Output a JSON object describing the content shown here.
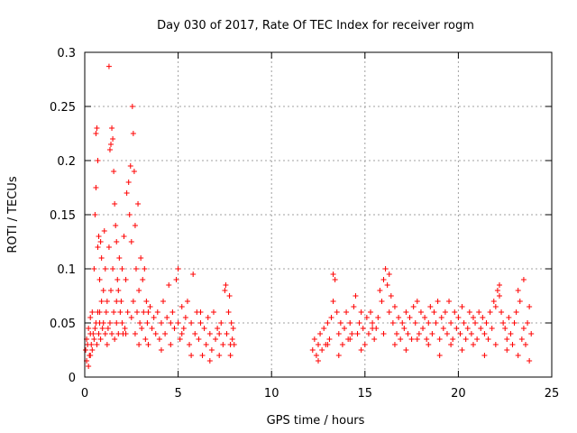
{
  "chart_data": {
    "type": "scatter",
    "title": "Day 030 of 2017, Rate Of TEC Index for receiver rogm",
    "xlabel": "GPS time / hours",
    "ylabel": "ROTI / TECUs",
    "xlim": [
      0,
      25
    ],
    "ylim": [
      0,
      0.3
    ],
    "xticks": [
      0,
      5,
      10,
      15,
      20,
      25
    ],
    "xtick_labels": [
      "0",
      "5",
      "10",
      "15",
      "20",
      "25"
    ],
    "yticks": [
      0,
      0.05,
      0.1,
      0.15,
      0.2,
      0.25,
      0.3
    ],
    "ytick_labels": [
      "0",
      "0.05",
      "0.1",
      "0.15",
      "0.2",
      "0.25",
      "0.3"
    ],
    "grid": true,
    "marker": "+",
    "color": "#ff0000",
    "series": [
      {
        "points": [
          [
            0.05,
            0.025
          ],
          [
            0.1,
            0.035
          ],
          [
            0.1,
            0.015
          ],
          [
            0.15,
            0.03
          ],
          [
            0.2,
            0.045
          ],
          [
            0.2,
            0.01
          ],
          [
            0.25,
            0.02
          ],
          [
            0.3,
            0.04
          ],
          [
            0.3,
            0.055
          ],
          [
            0.35,
            0.03
          ],
          [
            0.4,
            0.025
          ],
          [
            0.4,
            0.06
          ],
          [
            0.45,
            0.04
          ],
          [
            0.5,
            0.035
          ],
          [
            0.5,
            0.1
          ],
          [
            0.55,
            0.045
          ],
          [
            0.55,
            0.15
          ],
          [
            0.6,
            0.175
          ],
          [
            0.6,
            0.05
          ],
          [
            0.6,
            0.225
          ],
          [
            0.65,
            0.23
          ],
          [
            0.65,
            0.03
          ],
          [
            0.7,
            0.2
          ],
          [
            0.7,
            0.06
          ],
          [
            0.7,
            0.12
          ],
          [
            0.75,
            0.04
          ],
          [
            0.75,
            0.13
          ],
          [
            0.8,
            0.09
          ],
          [
            0.8,
            0.05
          ],
          [
            0.85,
            0.035
          ],
          [
            0.9,
            0.07
          ],
          [
            0.9,
            0.11
          ],
          [
            0.95,
            0.045
          ],
          [
            1.0,
            0.08
          ],
          [
            1.0,
            0.05
          ],
          [
            1.05,
            0.135
          ],
          [
            1.1,
            0.04
          ],
          [
            1.1,
            0.1
          ],
          [
            1.15,
            0.06
          ],
          [
            1.2,
            0.07
          ],
          [
            1.25,
            0.045
          ],
          [
            1.3,
            0.287
          ],
          [
            1.3,
            0.12
          ],
          [
            1.35,
            0.05
          ],
          [
            1.35,
            0.21
          ],
          [
            1.4,
            0.215
          ],
          [
            1.4,
            0.08
          ],
          [
            1.45,
            0.23
          ],
          [
            1.45,
            0.04
          ],
          [
            1.5,
            0.22
          ],
          [
            1.5,
            0.1
          ],
          [
            1.55,
            0.19
          ],
          [
            1.55,
            0.06
          ],
          [
            1.6,
            0.16
          ],
          [
            1.6,
            0.035
          ],
          [
            1.65,
            0.14
          ],
          [
            1.7,
            0.125
          ],
          [
            1.7,
            0.05
          ],
          [
            1.75,
            0.09
          ],
          [
            1.8,
            0.08
          ],
          [
            1.8,
            0.04
          ],
          [
            1.85,
            0.11
          ],
          [
            1.9,
            0.06
          ],
          [
            1.95,
            0.07
          ],
          [
            2.0,
            0.05
          ],
          [
            2.0,
            0.1
          ],
          [
            2.05,
            0.04
          ],
          [
            2.1,
            0.13
          ],
          [
            2.15,
            0.045
          ],
          [
            2.2,
            0.09
          ],
          [
            2.25,
            0.17
          ],
          [
            2.3,
            0.06
          ],
          [
            2.35,
            0.18
          ],
          [
            2.4,
            0.15
          ],
          [
            2.45,
            0.195
          ],
          [
            2.5,
            0.055
          ],
          [
            2.5,
            0.125
          ],
          [
            2.55,
            0.25
          ],
          [
            2.6,
            0.225
          ],
          [
            2.6,
            0.07
          ],
          [
            2.65,
            0.19
          ],
          [
            2.7,
            0.14
          ],
          [
            2.7,
            0.04
          ],
          [
            2.75,
            0.1
          ],
          [
            2.8,
            0.06
          ],
          [
            2.85,
            0.16
          ],
          [
            2.9,
            0.08
          ],
          [
            2.95,
            0.05
          ],
          [
            3.0,
            0.11
          ],
          [
            3.05,
            0.045
          ],
          [
            3.1,
            0.09
          ],
          [
            3.15,
            0.06
          ],
          [
            3.2,
            0.1
          ],
          [
            3.25,
            0.035
          ],
          [
            3.3,
            0.07
          ],
          [
            3.35,
            0.05
          ],
          [
            3.4,
            0.03
          ],
          [
            3.5,
            0.065
          ],
          [
            3.6,
            0.045
          ],
          [
            3.7,
            0.055
          ],
          [
            3.8,
            0.04
          ],
          [
            3.9,
            0.06
          ],
          [
            4.0,
            0.035
          ],
          [
            4.1,
            0.05
          ],
          [
            4.2,
            0.07
          ],
          [
            4.3,
            0.04
          ],
          [
            4.4,
            0.055
          ],
          [
            4.5,
            0.085
          ],
          [
            4.6,
            0.03
          ],
          [
            4.7,
            0.06
          ],
          [
            4.8,
            0.045
          ],
          [
            4.9,
            0.09
          ],
          [
            5.0,
            0.1
          ],
          [
            5.0,
            0.05
          ],
          [
            5.1,
            0.035
          ],
          [
            5.2,
            0.065
          ],
          [
            5.3,
            0.045
          ],
          [
            5.4,
            0.055
          ],
          [
            5.5,
            0.07
          ],
          [
            5.6,
            0.03
          ],
          [
            5.7,
            0.05
          ],
          [
            5.8,
            0.095
          ],
          [
            5.9,
            0.04
          ],
          [
            6.0,
            0.06
          ],
          [
            6.1,
            0.035
          ],
          [
            6.2,
            0.05
          ],
          [
            6.3,
            0.02
          ],
          [
            6.4,
            0.045
          ],
          [
            6.5,
            0.03
          ],
          [
            6.6,
            0.055
          ],
          [
            6.7,
            0.04
          ],
          [
            6.8,
            0.025
          ],
          [
            6.9,
            0.06
          ],
          [
            7.0,
            0.035
          ],
          [
            7.1,
            0.045
          ],
          [
            7.2,
            0.02
          ],
          [
            7.3,
            0.05
          ],
          [
            7.4,
            0.03
          ],
          [
            7.5,
            0.08
          ],
          [
            7.55,
            0.085
          ],
          [
            7.6,
            0.04
          ],
          [
            7.7,
            0.06
          ],
          [
            7.75,
            0.075
          ],
          [
            7.8,
            0.03
          ],
          [
            7.85,
            0.05
          ],
          [
            7.9,
            0.035
          ],
          [
            7.95,
            0.045
          ],
          [
            8.0,
            0.03
          ],
          [
            12.2,
            0.025
          ],
          [
            12.3,
            0.035
          ],
          [
            12.4,
            0.02
          ],
          [
            12.5,
            0.03
          ],
          [
            12.6,
            0.04
          ],
          [
            12.7,
            0.025
          ],
          [
            12.8,
            0.045
          ],
          [
            12.9,
            0.03
          ],
          [
            13.0,
            0.05
          ],
          [
            13.1,
            0.035
          ],
          [
            13.2,
            0.055
          ],
          [
            13.3,
            0.07
          ],
          [
            13.4,
            0.09
          ],
          [
            13.5,
            0.06
          ],
          [
            13.6,
            0.04
          ],
          [
            13.7,
            0.05
          ],
          [
            13.8,
            0.03
          ],
          [
            13.9,
            0.045
          ],
          [
            14.0,
            0.06
          ],
          [
            14.1,
            0.035
          ],
          [
            14.2,
            0.05
          ],
          [
            14.3,
            0.04
          ],
          [
            14.4,
            0.065
          ],
          [
            14.5,
            0.075
          ],
          [
            14.6,
            0.04
          ],
          [
            14.7,
            0.05
          ],
          [
            14.8,
            0.06
          ],
          [
            14.9,
            0.045
          ],
          [
            15.0,
            0.03
          ],
          [
            15.1,
            0.055
          ],
          [
            15.2,
            0.04
          ],
          [
            15.3,
            0.06
          ],
          [
            15.4,
            0.05
          ],
          [
            15.5,
            0.035
          ],
          [
            15.6,
            0.045
          ],
          [
            15.7,
            0.055
          ],
          [
            15.8,
            0.08
          ],
          [
            15.9,
            0.07
          ],
          [
            16.0,
            0.09
          ],
          [
            16.1,
            0.1
          ],
          [
            16.2,
            0.085
          ],
          [
            16.3,
            0.06
          ],
          [
            16.4,
            0.075
          ],
          [
            16.5,
            0.05
          ],
          [
            16.6,
            0.065
          ],
          [
            16.7,
            0.04
          ],
          [
            16.8,
            0.055
          ],
          [
            16.9,
            0.035
          ],
          [
            17.0,
            0.05
          ],
          [
            17.1,
            0.045
          ],
          [
            17.2,
            0.06
          ],
          [
            17.3,
            0.04
          ],
          [
            17.4,
            0.055
          ],
          [
            17.5,
            0.035
          ],
          [
            17.6,
            0.065
          ],
          [
            17.7,
            0.05
          ],
          [
            17.8,
            0.07
          ],
          [
            17.9,
            0.04
          ],
          [
            18.0,
            0.06
          ],
          [
            18.1,
            0.045
          ],
          [
            18.2,
            0.055
          ],
          [
            18.3,
            0.035
          ],
          [
            18.4,
            0.05
          ],
          [
            18.5,
            0.065
          ],
          [
            18.6,
            0.04
          ],
          [
            18.7,
            0.06
          ],
          [
            18.8,
            0.05
          ],
          [
            18.9,
            0.07
          ],
          [
            19.0,
            0.035
          ],
          [
            19.1,
            0.055
          ],
          [
            19.2,
            0.045
          ],
          [
            19.3,
            0.06
          ],
          [
            19.4,
            0.04
          ],
          [
            19.5,
            0.07
          ],
          [
            19.6,
            0.05
          ],
          [
            19.7,
            0.035
          ],
          [
            19.8,
            0.06
          ],
          [
            19.9,
            0.045
          ],
          [
            20.0,
            0.055
          ],
          [
            20.1,
            0.04
          ],
          [
            20.2,
            0.065
          ],
          [
            20.3,
            0.05
          ],
          [
            20.4,
            0.035
          ],
          [
            20.5,
            0.045
          ],
          [
            20.6,
            0.06
          ],
          [
            20.7,
            0.04
          ],
          [
            20.8,
            0.055
          ],
          [
            20.9,
            0.05
          ],
          [
            21.0,
            0.035
          ],
          [
            21.1,
            0.06
          ],
          [
            21.2,
            0.045
          ],
          [
            21.3,
            0.055
          ],
          [
            21.4,
            0.04
          ],
          [
            21.5,
            0.05
          ],
          [
            21.6,
            0.035
          ],
          [
            21.7,
            0.06
          ],
          [
            21.8,
            0.045
          ],
          [
            21.9,
            0.07
          ],
          [
            22.0,
            0.065
          ],
          [
            22.1,
            0.08
          ],
          [
            22.2,
            0.085
          ],
          [
            22.3,
            0.06
          ],
          [
            22.4,
            0.05
          ],
          [
            22.5,
            0.045
          ],
          [
            22.6,
            0.035
          ],
          [
            22.7,
            0.055
          ],
          [
            22.8,
            0.04
          ],
          [
            22.9,
            0.03
          ],
          [
            23.0,
            0.05
          ],
          [
            23.1,
            0.06
          ],
          [
            23.2,
            0.08
          ],
          [
            23.3,
            0.07
          ],
          [
            23.4,
            0.035
          ],
          [
            23.5,
            0.045
          ],
          [
            23.6,
            0.03
          ],
          [
            23.7,
            0.05
          ],
          [
            23.8,
            0.065
          ],
          [
            23.9,
            0.04
          ],
          [
            0.3,
            0.02
          ],
          [
            0.8,
            0.06
          ],
          [
            1.2,
            0.03
          ],
          [
            1.7,
            0.07
          ],
          [
            2.2,
            0.04
          ],
          [
            2.9,
            0.03
          ],
          [
            3.4,
            0.06
          ],
          [
            4.1,
            0.025
          ],
          [
            4.6,
            0.05
          ],
          [
            5.2,
            0.04
          ],
          [
            5.7,
            0.02
          ],
          [
            6.2,
            0.06
          ],
          [
            6.7,
            0.015
          ],
          [
            7.2,
            0.04
          ],
          [
            7.8,
            0.02
          ],
          [
            12.5,
            0.015
          ],
          [
            13.0,
            0.03
          ],
          [
            13.6,
            0.02
          ],
          [
            14.2,
            0.035
          ],
          [
            14.8,
            0.025
          ],
          [
            15.4,
            0.045
          ],
          [
            16.0,
            0.04
          ],
          [
            16.6,
            0.03
          ],
          [
            17.2,
            0.025
          ],
          [
            17.8,
            0.035
          ],
          [
            18.4,
            0.03
          ],
          [
            19.0,
            0.02
          ],
          [
            19.6,
            0.03
          ],
          [
            20.2,
            0.025
          ],
          [
            20.8,
            0.03
          ],
          [
            21.4,
            0.02
          ],
          [
            22.0,
            0.03
          ],
          [
            22.6,
            0.025
          ],
          [
            23.2,
            0.02
          ],
          [
            23.8,
            0.015
          ],
          [
            23.5,
            0.09
          ],
          [
            22.2,
            0.075
          ],
          [
            16.3,
            0.095
          ],
          [
            13.3,
            0.095
          ],
          [
            0.85,
            0.125
          ]
        ]
      }
    ]
  }
}
